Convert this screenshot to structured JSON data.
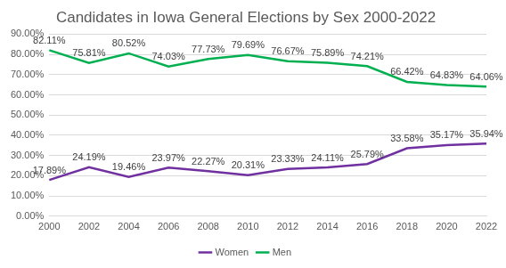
{
  "chart_data": {
    "type": "line",
    "title": "Candidates in Iowa General Elections by Sex 2000-2022",
    "categories": [
      "2000",
      "2002",
      "2004",
      "2006",
      "2008",
      "2010",
      "2012",
      "2014",
      "2016",
      "2018",
      "2020",
      "2022"
    ],
    "series": [
      {
        "name": "Women",
        "color": "#7030a0",
        "values": [
          17.89,
          24.19,
          19.46,
          23.97,
          22.27,
          20.31,
          23.33,
          24.11,
          25.79,
          33.58,
          35.17,
          35.94
        ],
        "value_labels": [
          "17.89%",
          "24.19%",
          "19.46%",
          "23.97%",
          "22.27%",
          "20.31%",
          "23.33%",
          "24.11%",
          "25.79%",
          "33.58%",
          "35.17%",
          "35.94%"
        ]
      },
      {
        "name": "Men",
        "color": "#00b050",
        "values": [
          82.11,
          75.81,
          80.52,
          74.03,
          77.73,
          79.69,
          76.67,
          75.89,
          74.21,
          66.42,
          64.83,
          64.06
        ],
        "value_labels": [
          "82.11%",
          "75.81%",
          "80.52%",
          "74.03%",
          "77.73%",
          "79.69%",
          "76.67%",
          "75.89%",
          "74.21%",
          "66.42%",
          "64.83%",
          "64.06%"
        ]
      }
    ],
    "ylim": [
      0,
      90
    ],
    "yticks": [
      {
        "value": 0,
        "label": "0.00%"
      },
      {
        "value": 10,
        "label": "10.00%"
      },
      {
        "value": 20,
        "label": "20.00%"
      },
      {
        "value": 30,
        "label": "30.00%"
      },
      {
        "value": 40,
        "label": "40.00%"
      },
      {
        "value": 50,
        "label": "50.00%"
      },
      {
        "value": 60,
        "label": "60.00%"
      },
      {
        "value": 70,
        "label": "70.00%"
      },
      {
        "value": 80,
        "label": "80.00%"
      },
      {
        "value": 90,
        "label": "90.00%"
      }
    ],
    "grid": true,
    "legend": "bottom",
    "data_labels": true
  }
}
